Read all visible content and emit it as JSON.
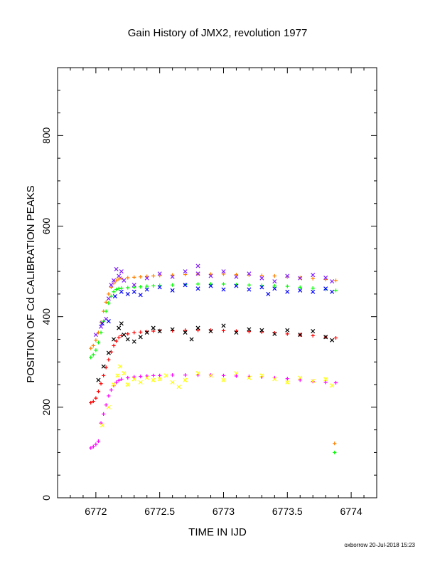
{
  "chart_data": {
    "type": "scatter",
    "title": "Gain History of JMX2, revolution 1977",
    "xlabel": "TIME IN IJD",
    "ylabel": "POSITION OF Cd CALIBRATION PEAKS",
    "xlim": [
      6771.7,
      6774.2
    ],
    "ylim": [
      0,
      950
    ],
    "xticks": [
      6772,
      6772.5,
      6773,
      6773.5,
      6774
    ],
    "xtick_labels": [
      "6772",
      "6772.5",
      "6773",
      "6773.5",
      "6774"
    ],
    "yticks": [
      0,
      200,
      400,
      600,
      800
    ],
    "ytick_labels": [
      "0",
      "200",
      "400",
      "600",
      "800"
    ],
    "grid": false,
    "footer": "oxborrow 20-Jul-2018 15:23",
    "series": [
      {
        "color": "#ff8000",
        "marker": "plus",
        "points": [
          [
            6771.96,
            330
          ],
          [
            6771.98,
            336
          ],
          [
            6772.0,
            348
          ],
          [
            6772.02,
            365
          ],
          [
            6772.04,
            388
          ],
          [
            6772.06,
            412
          ],
          [
            6772.08,
            432
          ],
          [
            6772.1,
            450
          ],
          [
            6772.12,
            465
          ],
          [
            6772.14,
            474
          ],
          [
            6772.16,
            480
          ],
          [
            6772.18,
            483
          ],
          [
            6772.2,
            485
          ],
          [
            6772.25,
            486
          ],
          [
            6772.3,
            487
          ],
          [
            6772.35,
            488
          ],
          [
            6772.4,
            489
          ],
          [
            6772.45,
            490
          ],
          [
            6772.5,
            491
          ],
          [
            6772.6,
            492
          ],
          [
            6772.7,
            493
          ],
          [
            6772.8,
            494
          ],
          [
            6772.9,
            494
          ],
          [
            6773.0,
            494
          ],
          [
            6773.1,
            493
          ],
          [
            6773.2,
            492
          ],
          [
            6773.3,
            491
          ],
          [
            6773.4,
            490
          ],
          [
            6773.5,
            488
          ],
          [
            6773.6,
            486
          ],
          [
            6773.7,
            484
          ],
          [
            6773.8,
            482
          ],
          [
            6773.88,
            480
          ],
          [
            6773.87,
            120
          ]
        ]
      },
      {
        "color": "#00ff00",
        "marker": "plus",
        "points": [
          [
            6771.96,
            310
          ],
          [
            6771.98,
            316
          ],
          [
            6772.0,
            326
          ],
          [
            6772.02,
            343
          ],
          [
            6772.04,
            365
          ],
          [
            6772.06,
            390
          ],
          [
            6772.08,
            412
          ],
          [
            6772.1,
            430
          ],
          [
            6772.12,
            445
          ],
          [
            6772.14,
            455
          ],
          [
            6772.16,
            460
          ],
          [
            6772.18,
            462
          ],
          [
            6772.2,
            463
          ],
          [
            6772.25,
            464
          ],
          [
            6772.3,
            465
          ],
          [
            6772.35,
            466
          ],
          [
            6772.4,
            467
          ],
          [
            6772.45,
            468
          ],
          [
            6772.5,
            469
          ],
          [
            6772.6,
            470
          ],
          [
            6772.7,
            471
          ],
          [
            6772.8,
            472
          ],
          [
            6772.9,
            472
          ],
          [
            6773.0,
            472
          ],
          [
            6773.1,
            471
          ],
          [
            6773.2,
            470
          ],
          [
            6773.3,
            469
          ],
          [
            6773.4,
            468
          ],
          [
            6773.5,
            467
          ],
          [
            6773.6,
            465
          ],
          [
            6773.7,
            463
          ],
          [
            6773.8,
            460
          ],
          [
            6773.88,
            458
          ],
          [
            6773.87,
            100
          ]
        ]
      },
      {
        "color": "#8020ff",
        "marker": "cross",
        "points": [
          [
            6772.0,
            360
          ],
          [
            6772.04,
            378
          ],
          [
            6772.08,
            395
          ],
          [
            6772.1,
            440
          ],
          [
            6772.12,
            470
          ],
          [
            6772.14,
            480
          ],
          [
            6772.16,
            505
          ],
          [
            6772.18,
            490
          ],
          [
            6772.2,
            500
          ],
          [
            6772.22,
            480
          ],
          [
            6772.3,
            470
          ],
          [
            6772.4,
            485
          ],
          [
            6772.5,
            495
          ],
          [
            6772.6,
            488
          ],
          [
            6772.7,
            500
          ],
          [
            6772.8,
            495
          ],
          [
            6772.9,
            490
          ],
          [
            6773.0,
            500
          ],
          [
            6773.1,
            488
          ],
          [
            6773.2,
            495
          ],
          [
            6773.3,
            485
          ],
          [
            6773.4,
            478
          ],
          [
            6773.5,
            490
          ],
          [
            6773.6,
            485
          ],
          [
            6773.7,
            492
          ],
          [
            6773.8,
            486
          ],
          [
            6773.85,
            478
          ],
          [
            6772.8,
            512
          ]
        ]
      },
      {
        "color": "#0000ff",
        "marker": "cross",
        "points": [
          [
            6772.05,
            385
          ],
          [
            6772.1,
            390
          ],
          [
            6772.15,
            445
          ],
          [
            6772.2,
            455
          ],
          [
            6772.25,
            450
          ],
          [
            6772.3,
            455
          ],
          [
            6772.35,
            448
          ],
          [
            6772.4,
            460
          ],
          [
            6772.5,
            465
          ],
          [
            6772.6,
            458
          ],
          [
            6772.7,
            470
          ],
          [
            6772.8,
            462
          ],
          [
            6772.9,
            468
          ],
          [
            6773.0,
            460
          ],
          [
            6773.1,
            468
          ],
          [
            6773.2,
            460
          ],
          [
            6773.3,
            465
          ],
          [
            6773.35,
            450
          ],
          [
            6773.4,
            462
          ],
          [
            6773.5,
            455
          ],
          [
            6773.6,
            458
          ],
          [
            6773.7,
            455
          ],
          [
            6773.8,
            462
          ],
          [
            6773.85,
            455
          ]
        ]
      },
      {
        "color": "#ff0000",
        "marker": "plus",
        "points": [
          [
            6771.96,
            210
          ],
          [
            6771.98,
            213
          ],
          [
            6772.0,
            220
          ],
          [
            6772.02,
            235
          ],
          [
            6772.04,
            252
          ],
          [
            6772.06,
            270
          ],
          [
            6772.08,
            288
          ],
          [
            6772.1,
            305
          ],
          [
            6772.12,
            322
          ],
          [
            6772.14,
            336
          ],
          [
            6772.16,
            346
          ],
          [
            6772.18,
            354
          ],
          [
            6772.2,
            358
          ],
          [
            6772.25,
            362
          ],
          [
            6772.3,
            365
          ],
          [
            6772.35,
            366
          ],
          [
            6772.4,
            367
          ],
          [
            6772.45,
            368
          ],
          [
            6772.5,
            369
          ],
          [
            6772.6,
            369
          ],
          [
            6772.7,
            370
          ],
          [
            6772.8,
            370
          ],
          [
            6772.9,
            370
          ],
          [
            6773.0,
            369
          ],
          [
            6773.1,
            368
          ],
          [
            6773.2,
            367
          ],
          [
            6773.3,
            366
          ],
          [
            6773.4,
            364
          ],
          [
            6773.5,
            362
          ],
          [
            6773.6,
            360
          ],
          [
            6773.7,
            358
          ],
          [
            6773.8,
            355
          ],
          [
            6773.88,
            353
          ]
        ]
      },
      {
        "color": "#000000",
        "marker": "cross",
        "points": [
          [
            6772.02,
            260
          ],
          [
            6772.06,
            290
          ],
          [
            6772.1,
            320
          ],
          [
            6772.14,
            350
          ],
          [
            6772.18,
            375
          ],
          [
            6772.2,
            385
          ],
          [
            6772.22,
            360
          ],
          [
            6772.25,
            350
          ],
          [
            6772.3,
            345
          ],
          [
            6772.35,
            355
          ],
          [
            6772.4,
            365
          ],
          [
            6772.45,
            375
          ],
          [
            6772.5,
            368
          ],
          [
            6772.6,
            372
          ],
          [
            6772.7,
            365
          ],
          [
            6772.75,
            350
          ],
          [
            6772.8,
            375
          ],
          [
            6772.9,
            368
          ],
          [
            6773.0,
            380
          ],
          [
            6773.1,
            365
          ],
          [
            6773.2,
            372
          ],
          [
            6773.3,
            370
          ],
          [
            6773.4,
            362
          ],
          [
            6773.5,
            370
          ],
          [
            6773.6,
            360
          ],
          [
            6773.7,
            368
          ],
          [
            6773.8,
            355
          ],
          [
            6773.85,
            348
          ]
        ]
      },
      {
        "color": "#ff00ff",
        "marker": "plus",
        "points": [
          [
            6771.96,
            110
          ],
          [
            6771.98,
            113
          ],
          [
            6772.0,
            118
          ],
          [
            6772.02,
            125
          ],
          [
            6772.04,
            165
          ],
          [
            6772.06,
            185
          ],
          [
            6772.08,
            205
          ],
          [
            6772.1,
            225
          ],
          [
            6772.12,
            238
          ],
          [
            6772.14,
            248
          ],
          [
            6772.16,
            255
          ],
          [
            6772.18,
            259
          ],
          [
            6772.2,
            262
          ],
          [
            6772.25,
            265
          ],
          [
            6772.3,
            267
          ],
          [
            6772.35,
            268
          ],
          [
            6772.4,
            269
          ],
          [
            6772.45,
            270
          ],
          [
            6772.5,
            270
          ],
          [
            6772.6,
            271
          ],
          [
            6772.7,
            271
          ],
          [
            6772.8,
            271
          ],
          [
            6772.9,
            271
          ],
          [
            6773.0,
            270
          ],
          [
            6773.1,
            269
          ],
          [
            6773.2,
            268
          ],
          [
            6773.3,
            267
          ],
          [
            6773.4,
            265
          ],
          [
            6773.5,
            263
          ],
          [
            6773.6,
            260
          ],
          [
            6773.7,
            257
          ],
          [
            6773.8,
            255
          ],
          [
            6773.88,
            254
          ]
        ]
      },
      {
        "color": "#ffff00",
        "marker": "cross",
        "points": [
          [
            6772.05,
            160
          ],
          [
            6772.1,
            200
          ],
          [
            6772.14,
            250
          ],
          [
            6772.17,
            270
          ],
          [
            6772.19,
            290
          ],
          [
            6772.22,
            275
          ],
          [
            6772.25,
            250
          ],
          [
            6772.3,
            262
          ],
          [
            6772.35,
            255
          ],
          [
            6772.4,
            265
          ],
          [
            6772.45,
            260
          ],
          [
            6772.5,
            262
          ],
          [
            6772.55,
            270
          ],
          [
            6772.6,
            255
          ],
          [
            6772.65,
            245
          ],
          [
            6772.7,
            260
          ],
          [
            6772.8,
            275
          ],
          [
            6772.9,
            270
          ],
          [
            6773.0,
            260
          ],
          [
            6773.1,
            275
          ],
          [
            6773.2,
            265
          ],
          [
            6773.3,
            270
          ],
          [
            6773.4,
            262
          ],
          [
            6773.5,
            255
          ],
          [
            6773.6,
            265
          ],
          [
            6773.7,
            258
          ],
          [
            6773.8,
            262
          ],
          [
            6773.85,
            248
          ]
        ]
      }
    ]
  }
}
